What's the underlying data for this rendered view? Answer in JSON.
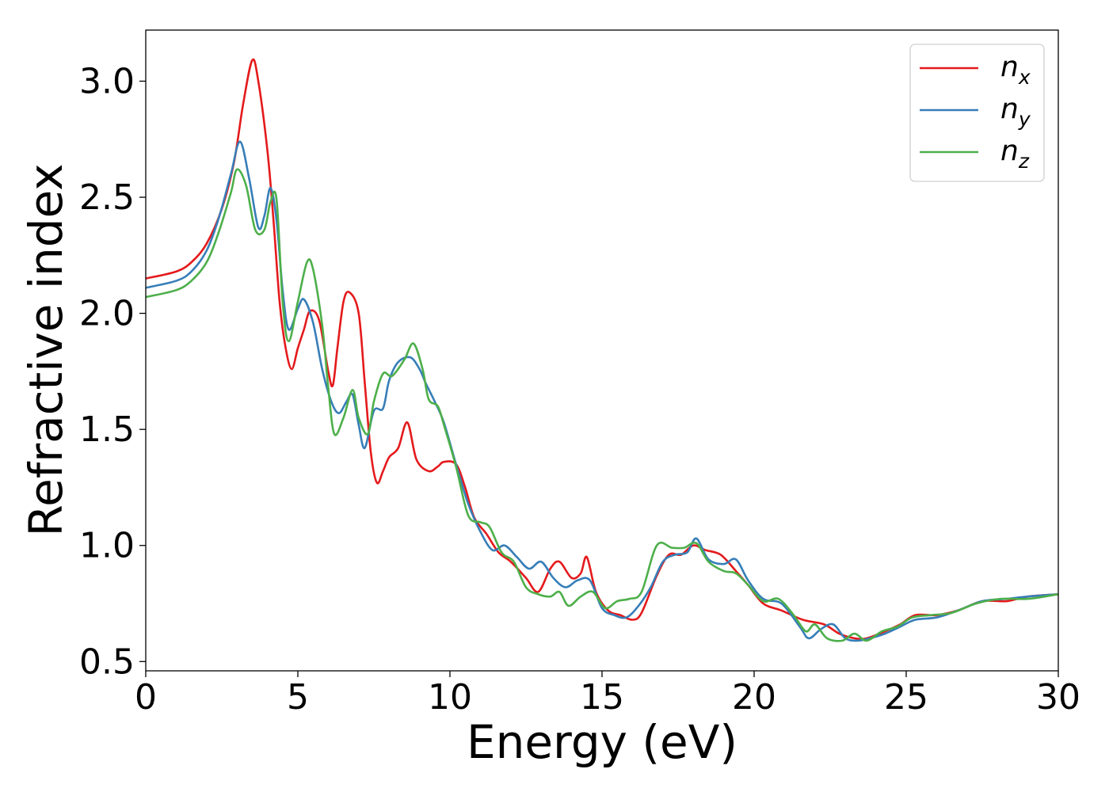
{
  "chart_data": {
    "type": "line",
    "xlabel": "Energy (eV)",
    "ylabel": "Refractive index",
    "xlim": [
      0,
      30
    ],
    "ylim": [
      0.46,
      3.22
    ],
    "xticks": [
      0,
      5,
      10,
      15,
      20,
      25,
      30
    ],
    "xtick_labels": [
      "0",
      "5",
      "10",
      "15",
      "20",
      "25",
      "30"
    ],
    "yticks": [
      0.5,
      1.0,
      1.5,
      2.0,
      2.5,
      3.0
    ],
    "ytick_labels": [
      "0.5",
      "1.0",
      "1.5",
      "2.0",
      "2.5",
      "3.0"
    ],
    "grid": false,
    "legend_position": "top-right",
    "series": [
      {
        "name": "n_x",
        "legend_base": "n",
        "legend_sub": "x",
        "color": "#e41a1c",
        "points": [
          [
            0,
            2.15
          ],
          [
            1,
            2.18
          ],
          [
            1.5,
            2.22
          ],
          [
            2,
            2.3
          ],
          [
            2.5,
            2.45
          ],
          [
            2.9,
            2.65
          ],
          [
            3.2,
            2.9
          ],
          [
            3.5,
            3.09
          ],
          [
            3.7,
            3.0
          ],
          [
            4.0,
            2.7
          ],
          [
            4.2,
            2.4
          ],
          [
            4.4,
            2.05
          ],
          [
            4.6,
            1.85
          ],
          [
            4.8,
            1.76
          ],
          [
            5.0,
            1.85
          ],
          [
            5.2,
            1.93
          ],
          [
            5.4,
            2.01
          ],
          [
            5.7,
            1.97
          ],
          [
            6.0,
            1.75
          ],
          [
            6.15,
            1.69
          ],
          [
            6.3,
            1.85
          ],
          [
            6.5,
            2.05
          ],
          [
            6.7,
            2.09
          ],
          [
            7.0,
            2.0
          ],
          [
            7.2,
            1.7
          ],
          [
            7.4,
            1.4
          ],
          [
            7.6,
            1.27
          ],
          [
            7.8,
            1.32
          ],
          [
            8.0,
            1.38
          ],
          [
            8.3,
            1.42
          ],
          [
            8.6,
            1.53
          ],
          [
            8.9,
            1.37
          ],
          [
            9.3,
            1.32
          ],
          [
            9.6,
            1.34
          ],
          [
            9.8,
            1.36
          ],
          [
            10.2,
            1.35
          ],
          [
            10.5,
            1.25
          ],
          [
            10.8,
            1.12
          ],
          [
            11.2,
            1.05
          ],
          [
            11.6,
            0.97
          ],
          [
            12.0,
            0.93
          ],
          [
            12.5,
            0.86
          ],
          [
            12.9,
            0.8
          ],
          [
            13.3,
            0.9
          ],
          [
            13.6,
            0.93
          ],
          [
            14.0,
            0.86
          ],
          [
            14.3,
            0.88
          ],
          [
            14.5,
            0.95
          ],
          [
            14.8,
            0.8
          ],
          [
            15.2,
            0.72
          ],
          [
            15.6,
            0.7
          ],
          [
            16.0,
            0.68
          ],
          [
            16.3,
            0.71
          ],
          [
            16.8,
            0.87
          ],
          [
            17.2,
            0.96
          ],
          [
            17.6,
            0.96
          ],
          [
            18.0,
            1.0
          ],
          [
            18.4,
            0.98
          ],
          [
            18.9,
            0.96
          ],
          [
            19.4,
            0.89
          ],
          [
            19.8,
            0.83
          ],
          [
            20.3,
            0.75
          ],
          [
            20.9,
            0.72
          ],
          [
            21.6,
            0.68
          ],
          [
            22.3,
            0.66
          ],
          [
            22.8,
            0.62
          ],
          [
            23.3,
            0.6
          ],
          [
            23.7,
            0.6
          ],
          [
            24.3,
            0.63
          ],
          [
            24.8,
            0.66
          ],
          [
            25.3,
            0.7
          ],
          [
            26.0,
            0.7
          ],
          [
            26.7,
            0.72
          ],
          [
            27.5,
            0.76
          ],
          [
            28.3,
            0.76
          ],
          [
            29.0,
            0.78
          ],
          [
            30.0,
            0.79
          ]
        ]
      },
      {
        "name": "n_y",
        "legend_base": "n",
        "legend_sub": "y",
        "color": "#377eb8",
        "points": [
          [
            0,
            2.11
          ],
          [
            1,
            2.14
          ],
          [
            1.5,
            2.18
          ],
          [
            2,
            2.27
          ],
          [
            2.4,
            2.41
          ],
          [
            2.8,
            2.6
          ],
          [
            3.1,
            2.74
          ],
          [
            3.4,
            2.58
          ],
          [
            3.7,
            2.37
          ],
          [
            3.9,
            2.42
          ],
          [
            4.1,
            2.54
          ],
          [
            4.3,
            2.4
          ],
          [
            4.5,
            2.1
          ],
          [
            4.7,
            1.93
          ],
          [
            5.0,
            2.02
          ],
          [
            5.2,
            2.06
          ],
          [
            5.5,
            1.96
          ],
          [
            5.8,
            1.76
          ],
          [
            6.1,
            1.62
          ],
          [
            6.35,
            1.57
          ],
          [
            6.6,
            1.62
          ],
          [
            6.8,
            1.65
          ],
          [
            7.0,
            1.52
          ],
          [
            7.2,
            1.42
          ],
          [
            7.5,
            1.58
          ],
          [
            7.8,
            1.59
          ],
          [
            8.0,
            1.71
          ],
          [
            8.3,
            1.79
          ],
          [
            8.7,
            1.81
          ],
          [
            9.0,
            1.76
          ],
          [
            9.2,
            1.7
          ],
          [
            9.5,
            1.62
          ],
          [
            9.8,
            1.53
          ],
          [
            10.2,
            1.35
          ],
          [
            10.6,
            1.18
          ],
          [
            11.0,
            1.06
          ],
          [
            11.4,
            0.98
          ],
          [
            11.8,
            1.0
          ],
          [
            12.2,
            0.95
          ],
          [
            12.6,
            0.9
          ],
          [
            13.0,
            0.93
          ],
          [
            13.4,
            0.86
          ],
          [
            13.8,
            0.82
          ],
          [
            14.2,
            0.85
          ],
          [
            14.6,
            0.85
          ],
          [
            15.0,
            0.73
          ],
          [
            15.4,
            0.7
          ],
          [
            15.8,
            0.69
          ],
          [
            16.2,
            0.74
          ],
          [
            16.6,
            0.82
          ],
          [
            17.0,
            0.93
          ],
          [
            17.4,
            0.96
          ],
          [
            17.8,
            0.97
          ],
          [
            18.1,
            1.03
          ],
          [
            18.5,
            0.94
          ],
          [
            19.0,
            0.92
          ],
          [
            19.4,
            0.94
          ],
          [
            19.8,
            0.85
          ],
          [
            20.3,
            0.77
          ],
          [
            20.9,
            0.75
          ],
          [
            21.5,
            0.65
          ],
          [
            21.8,
            0.6
          ],
          [
            22.2,
            0.64
          ],
          [
            22.6,
            0.66
          ],
          [
            23.0,
            0.6
          ],
          [
            23.4,
            0.59
          ],
          [
            23.8,
            0.6
          ],
          [
            24.3,
            0.62
          ],
          [
            24.8,
            0.65
          ],
          [
            25.3,
            0.68
          ],
          [
            26.0,
            0.69
          ],
          [
            26.7,
            0.72
          ],
          [
            27.5,
            0.76
          ],
          [
            28.3,
            0.77
          ],
          [
            29.0,
            0.78
          ],
          [
            30.0,
            0.79
          ]
        ]
      },
      {
        "name": "n_z",
        "legend_base": "n",
        "legend_sub": "z",
        "color": "#4daf4a",
        "points": [
          [
            0,
            2.07
          ],
          [
            1,
            2.1
          ],
          [
            1.5,
            2.14
          ],
          [
            2,
            2.22
          ],
          [
            2.4,
            2.35
          ],
          [
            2.8,
            2.52
          ],
          [
            3.0,
            2.62
          ],
          [
            3.3,
            2.55
          ],
          [
            3.6,
            2.36
          ],
          [
            3.9,
            2.36
          ],
          [
            4.1,
            2.48
          ],
          [
            4.3,
            2.49
          ],
          [
            4.5,
            2.05
          ],
          [
            4.7,
            1.88
          ],
          [
            5.0,
            2.05
          ],
          [
            5.3,
            2.22
          ],
          [
            5.5,
            2.19
          ],
          [
            5.8,
            1.95
          ],
          [
            6.0,
            1.68
          ],
          [
            6.2,
            1.48
          ],
          [
            6.5,
            1.55
          ],
          [
            6.8,
            1.67
          ],
          [
            7.0,
            1.55
          ],
          [
            7.3,
            1.48
          ],
          [
            7.5,
            1.62
          ],
          [
            7.8,
            1.74
          ],
          [
            8.1,
            1.73
          ],
          [
            8.5,
            1.8
          ],
          [
            8.8,
            1.87
          ],
          [
            9.1,
            1.76
          ],
          [
            9.3,
            1.63
          ],
          [
            9.6,
            1.6
          ],
          [
            9.8,
            1.52
          ],
          [
            10.2,
            1.34
          ],
          [
            10.6,
            1.13
          ],
          [
            11.0,
            1.1
          ],
          [
            11.3,
            1.08
          ],
          [
            11.7,
            0.97
          ],
          [
            12.1,
            0.93
          ],
          [
            12.5,
            0.82
          ],
          [
            12.9,
            0.79
          ],
          [
            13.3,
            0.78
          ],
          [
            13.6,
            0.8
          ],
          [
            13.9,
            0.74
          ],
          [
            14.3,
            0.78
          ],
          [
            14.7,
            0.8
          ],
          [
            15.1,
            0.73
          ],
          [
            15.5,
            0.76
          ],
          [
            15.9,
            0.77
          ],
          [
            16.3,
            0.8
          ],
          [
            16.8,
            1.0
          ],
          [
            17.3,
            0.99
          ],
          [
            17.7,
            0.99
          ],
          [
            18.1,
            1.01
          ],
          [
            18.5,
            0.93
          ],
          [
            19.0,
            0.89
          ],
          [
            19.4,
            0.88
          ],
          [
            19.8,
            0.83
          ],
          [
            20.3,
            0.76
          ],
          [
            20.8,
            0.77
          ],
          [
            21.3,
            0.7
          ],
          [
            21.7,
            0.63
          ],
          [
            22.0,
            0.66
          ],
          [
            22.4,
            0.6
          ],
          [
            22.9,
            0.59
          ],
          [
            23.3,
            0.62
          ],
          [
            23.7,
            0.59
          ],
          [
            24.2,
            0.63
          ],
          [
            24.7,
            0.65
          ],
          [
            25.2,
            0.69
          ],
          [
            25.8,
            0.7
          ],
          [
            26.5,
            0.71
          ],
          [
            27.3,
            0.75
          ],
          [
            28.1,
            0.77
          ],
          [
            29.0,
            0.77
          ],
          [
            30.0,
            0.79
          ]
        ]
      }
    ]
  }
}
